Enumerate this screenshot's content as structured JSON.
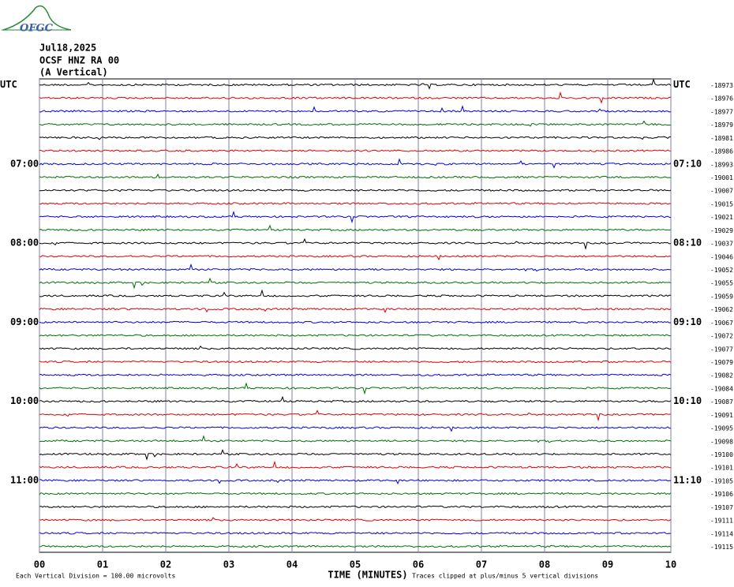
{
  "header": {
    "logo": "OFGC",
    "date": "Jul18,2025",
    "station": "OCSF HNZ RA 00",
    "component": "(A Vertical)"
  },
  "left_labels": [
    "UTC",
    "07:00",
    "08:00",
    "09:00",
    "10:00",
    "11:00"
  ],
  "right_labels": [
    "UTC",
    "07:10",
    "08:10",
    "09:10",
    "10:10",
    "11:10"
  ],
  "trace_labels": [
    "-18973",
    "-18976",
    "-18977",
    "-18979",
    "-18981",
    "-18986",
    "-18993",
    "-19001",
    "-19007",
    "-19015",
    "-19021",
    "-19029",
    "-19037",
    "-19046",
    "-19052",
    "-19055",
    "-19059",
    "-19062",
    "-19067",
    "-19072",
    "-19077",
    "-19079",
    "-19082",
    "-19084",
    "-19087",
    "-19091",
    "-19095",
    "-19098",
    "-19100",
    "-19101",
    "-19105",
    "-19106",
    "-19107",
    "-19111",
    "-19114",
    "-19115"
  ],
  "x_axis": {
    "ticks": [
      "00",
      "01",
      "02",
      "03",
      "04",
      "05",
      "06",
      "07",
      "08",
      "09",
      "10"
    ],
    "label": "TIME (MINUTES)"
  },
  "footer": {
    "scale": "Each Vertical Division =  100.00 microvolts",
    "clip": "Traces clipped at plus/minus 5 vertical divisions"
  }
}
